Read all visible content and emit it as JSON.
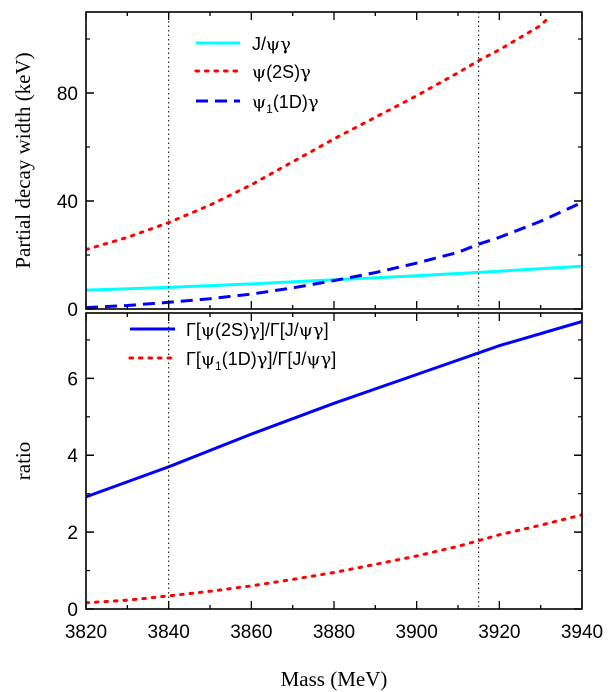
{
  "chart_data": [
    {
      "type": "line",
      "panel": "top",
      "xlabel": "",
      "ylabel": "Partial decay width (keV)",
      "xlim": [
        3820,
        3940
      ],
      "ylim": [
        0,
        110
      ],
      "yticks": [
        0,
        40,
        80
      ],
      "grid": false,
      "legend_position": "top-left",
      "reference_lines_x": [
        3840,
        3915
      ],
      "series": [
        {
          "name_parts": [
            "J/",
            "ψγ"
          ],
          "color": "#00ffff",
          "style": "solid",
          "x": [
            3820,
            3840,
            3860,
            3880,
            3900,
            3920,
            3940
          ],
          "values": [
            7,
            8,
            9.3,
            10.8,
            12.3,
            14,
            15.8
          ]
        },
        {
          "name_parts": [
            "ψ",
            "(2S)",
            "γ"
          ],
          "color": "#ff0000",
          "style": "dotted",
          "x": [
            3820,
            3830,
            3840,
            3850,
            3860,
            3870,
            3880,
            3890,
            3900,
            3910,
            3915,
            3920,
            3930,
            3932
          ],
          "values": [
            22,
            26.5,
            32,
            38.5,
            46,
            54.5,
            63,
            71,
            79,
            87.5,
            92,
            96,
            105,
            108
          ]
        },
        {
          "name_parts": [
            "ψ",
            "1",
            "(1D)",
            "γ"
          ],
          "color": "#0000ff",
          "style": "dashed",
          "x": [
            3820,
            3830,
            3840,
            3850,
            3860,
            3870,
            3880,
            3890,
            3900,
            3910,
            3915,
            3920,
            3930,
            3940
          ],
          "values": [
            0.5,
            1.3,
            2.5,
            3.8,
            5.5,
            7.8,
            10.5,
            13.5,
            17,
            21,
            24,
            26.5,
            32.5,
            39.5
          ]
        }
      ]
    },
    {
      "type": "line",
      "panel": "bottom",
      "xlabel": "Mass (MeV)",
      "ylabel": "ratio",
      "xlim": [
        3820,
        3940
      ],
      "ylim": [
        0,
        7.7
      ],
      "xticks": [
        3820,
        3840,
        3860,
        3880,
        3900,
        3920,
        3940
      ],
      "yticks": [
        0,
        2,
        4,
        6
      ],
      "grid": false,
      "legend_position": "top",
      "reference_lines_x": [
        3840,
        3915
      ],
      "series": [
        {
          "name_parts": [
            "Γ[",
            "ψ",
            "(2S)",
            "γ",
            "]/Γ[J/",
            "ψγ",
            "]"
          ],
          "color": "#0000ff",
          "style": "solid",
          "x": [
            3820,
            3840,
            3860,
            3880,
            3900,
            3920,
            3940
          ],
          "values": [
            2.92,
            3.7,
            4.55,
            5.35,
            6.1,
            6.85,
            7.48
          ]
        },
        {
          "name_parts": [
            "Γ[",
            "ψ",
            "1",
            "(1D)",
            "γ",
            "]/Γ[J/",
            "ψγ",
            "]"
          ],
          "color": "#ff0000",
          "style": "dotted",
          "x": [
            3820,
            3830,
            3840,
            3850,
            3860,
            3870,
            3880,
            3890,
            3900,
            3910,
            3915,
            3920,
            3930,
            3940
          ],
          "values": [
            0.16,
            0.23,
            0.34,
            0.46,
            0.6,
            0.77,
            0.95,
            1.16,
            1.38,
            1.63,
            1.78,
            1.93,
            2.18,
            2.45
          ]
        }
      ]
    }
  ]
}
